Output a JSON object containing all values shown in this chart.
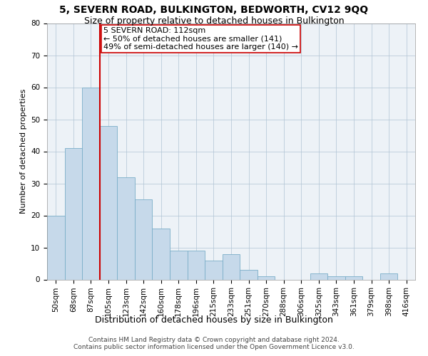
{
  "title": "5, SEVERN ROAD, BULKINGTON, BEDWORTH, CV12 9QQ",
  "subtitle": "Size of property relative to detached houses in Bulkington",
  "xlabel": "Distribution of detached houses by size in Bulkington",
  "ylabel": "Number of detached properties",
  "categories": [
    "50sqm",
    "68sqm",
    "87sqm",
    "105sqm",
    "123sqm",
    "142sqm",
    "160sqm",
    "178sqm",
    "196sqm",
    "215sqm",
    "233sqm",
    "251sqm",
    "270sqm",
    "288sqm",
    "306sqm",
    "325sqm",
    "343sqm",
    "361sqm",
    "379sqm",
    "398sqm",
    "416sqm"
  ],
  "values": [
    20,
    41,
    60,
    48,
    32,
    25,
    16,
    9,
    9,
    6,
    8,
    3,
    1,
    0,
    0,
    2,
    1,
    1,
    0,
    2,
    0
  ],
  "bar_color": "#c6d9ea",
  "bar_edge_color": "#7aaec8",
  "vline_x": 2.5,
  "vline_color": "#cc0000",
  "annotation_line1": "5 SEVERN ROAD: 112sqm",
  "annotation_line2": "← 50% of detached houses are smaller (141)",
  "annotation_line3": "49% of semi-detached houses are larger (140) →",
  "annotation_box_color": "#cc0000",
  "ylim": [
    0,
    80
  ],
  "yticks": [
    0,
    10,
    20,
    30,
    40,
    50,
    60,
    70,
    80
  ],
  "grid_color": "#b0c4d4",
  "bg_color": "#edf2f7",
  "footer": "Contains HM Land Registry data © Crown copyright and database right 2024.\nContains public sector information licensed under the Open Government Licence v3.0.",
  "title_fontsize": 10,
  "subtitle_fontsize": 9,
  "xlabel_fontsize": 9,
  "ylabel_fontsize": 8,
  "tick_fontsize": 7.5,
  "annotation_fontsize": 8,
  "footer_fontsize": 6.5
}
